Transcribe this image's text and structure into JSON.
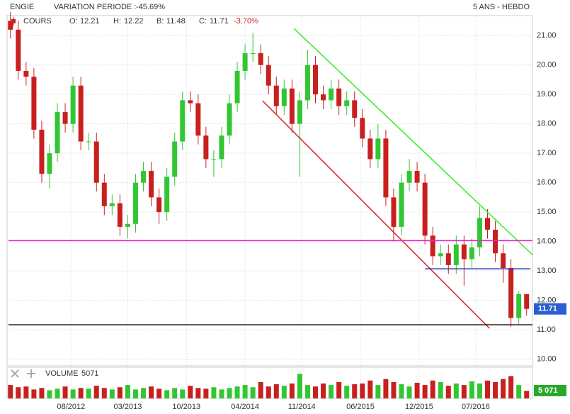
{
  "chart_data": {
    "type": "candlestick",
    "header": {
      "name": "ENGIE",
      "variation_label": "VARIATION PERIODE :",
      "variation": "-45.69%",
      "period": "5 ANS - HEBDO"
    },
    "legend": {
      "series_name": "COURS",
      "open_label": "O:",
      "high_label": "H:",
      "low_label": "B:",
      "close_label": "C:",
      "change": "-3.70%"
    },
    "up_color": "#33c633",
    "down_color": "#c8201e",
    "xlim": [
      0,
      268
    ],
    "xticks": [
      {
        "value": 32,
        "label": "08/2012"
      },
      {
        "value": 61,
        "label": "03/2013"
      },
      {
        "value": 91,
        "label": "10/2013"
      },
      {
        "value": 121,
        "label": "04/2014"
      },
      {
        "value": 150,
        "label": "11/2014"
      },
      {
        "value": 180,
        "label": "06/2015"
      },
      {
        "value": 210,
        "label": "12/2015"
      },
      {
        "value": 239,
        "label": "07/2016"
      }
    ],
    "ylim": [
      9.8,
      21.63
    ],
    "yticks": [
      {
        "value": 10,
        "label": "10.00"
      },
      {
        "value": 11,
        "label": "11.00"
      },
      {
        "value": 12,
        "label": "12.00"
      },
      {
        "value": 13,
        "label": "13.00"
      },
      {
        "value": 14,
        "label": "14.00"
      },
      {
        "value": 15,
        "label": "15.00"
      },
      {
        "value": 16,
        "label": "16.00"
      },
      {
        "value": 17,
        "label": "17.00"
      },
      {
        "value": 18,
        "label": "18.00"
      },
      {
        "value": 19,
        "label": "19.00"
      },
      {
        "value": 20,
        "label": "20.00"
      },
      {
        "value": 21,
        "label": "21.00"
      }
    ],
    "grid": true,
    "x": [
      1,
      5,
      9,
      13,
      17,
      21,
      25,
      29,
      33,
      37,
      41,
      45,
      49,
      53,
      57,
      61,
      65,
      69,
      73,
      77,
      81,
      85,
      89,
      93,
      97,
      101,
      105,
      109,
      113,
      117,
      121,
      125,
      129,
      133,
      137,
      141,
      145,
      149,
      153,
      157,
      161,
      165,
      169,
      173,
      177,
      181,
      185,
      189,
      193,
      197,
      201,
      205,
      209,
      213,
      217,
      221,
      225,
      229,
      233,
      237,
      241,
      245,
      249,
      253,
      257,
      261,
      265
    ],
    "open": [
      21.5,
      21.2,
      19.8,
      19.6,
      17.8,
      16.3,
      17.0,
      18.4,
      18.0,
      19.3,
      17.4,
      17.4,
      16.0,
      15.2,
      15.3,
      14.5,
      14.6,
      16.0,
      16.4,
      15.5,
      15.0,
      16.2,
      17.4,
      18.8,
      18.7,
      17.6,
      16.8,
      16.8,
      17.6,
      18.7,
      19.8,
      20.4,
      20.4,
      20.0,
      19.3,
      18.6,
      19.2,
      18.0,
      18.8,
      20.0,
      19.0,
      18.8,
      19.2,
      18.6,
      18.8,
      18.2,
      17.5,
      16.8,
      17.5,
      15.5,
      14.5,
      16.0,
      16.4,
      16.0,
      14.2,
      13.5,
      13.6,
      13.2,
      13.9,
      13.4,
      13.8,
      14.8,
      14.4,
      13.6,
      13.1,
      11.4,
      12.21
    ],
    "high": [
      21.8,
      21.5,
      20.1,
      19.9,
      18.1,
      17.3,
      18.7,
      18.7,
      19.6,
      19.6,
      17.7,
      17.7,
      16.3,
      15.6,
      15.6,
      14.9,
      16.3,
      16.7,
      16.7,
      15.8,
      16.5,
      17.7,
      19.1,
      19.1,
      19.0,
      17.9,
      17.1,
      17.9,
      19.0,
      20.1,
      20.7,
      21.1,
      20.7,
      20.3,
      19.6,
      19.5,
      19.5,
      19.1,
      20.5,
      20.3,
      19.3,
      19.5,
      19.5,
      19.1,
      19.1,
      18.5,
      17.8,
      18.0,
      17.8,
      15.8,
      16.3,
      16.8,
      16.7,
      16.3,
      14.5,
      13.9,
      13.9,
      14.2,
      14.2,
      14.1,
      15.2,
      15.1,
      14.7,
      13.9,
      13.4,
      12.3,
      12.22
    ],
    "low": [
      20.9,
      19.5,
      19.3,
      17.5,
      16.0,
      15.8,
      16.7,
      17.7,
      17.7,
      17.1,
      17.1,
      15.7,
      14.9,
      14.9,
      14.2,
      14.1,
      14.3,
      15.7,
      15.2,
      14.6,
      14.7,
      15.9,
      17.1,
      18.4,
      17.3,
      16.5,
      16.2,
      16.5,
      17.3,
      18.4,
      19.5,
      20.1,
      19.7,
      19.0,
      18.3,
      18.3,
      17.7,
      16.2,
      18.5,
      18.7,
      18.5,
      18.5,
      18.3,
      18.3,
      17.9,
      17.2,
      16.5,
      16.5,
      15.2,
      14.0,
      14.2,
      15.7,
      15.7,
      13.9,
      13.2,
      13.2,
      12.9,
      12.9,
      12.5,
      13.1,
      13.5,
      14.1,
      13.3,
      12.6,
      11.1,
      11.2,
      11.48
    ],
    "close": [
      21.2,
      19.8,
      19.6,
      17.8,
      16.3,
      17.0,
      18.4,
      18.0,
      19.3,
      17.4,
      17.4,
      16.0,
      15.2,
      15.3,
      14.5,
      14.6,
      16.0,
      16.4,
      15.5,
      15.0,
      16.2,
      17.4,
      18.8,
      18.7,
      17.6,
      16.8,
      16.8,
      17.6,
      18.7,
      19.8,
      20.4,
      20.4,
      20.0,
      19.3,
      18.6,
      19.2,
      18.0,
      18.8,
      20.0,
      19.0,
      18.8,
      19.2,
      18.6,
      18.8,
      18.2,
      17.5,
      16.8,
      17.5,
      15.5,
      14.5,
      16.0,
      16.4,
      16.0,
      14.2,
      13.5,
      13.6,
      13.2,
      13.9,
      13.4,
      13.8,
      14.8,
      14.4,
      13.6,
      13.1,
      11.4,
      12.21,
      11.71
    ],
    "lines": [
      {
        "x": [
          146,
          268
        ],
        "y": [
          21.24,
          13.55
        ],
        "color": "#33ee22"
      },
      {
        "x": [
          130,
          246
        ],
        "y": [
          18.78,
          11.05
        ],
        "color": "#e02020"
      },
      {
        "x": [
          0,
          268
        ],
        "y": [
          14.03,
          14.03
        ],
        "color": "#ee22cc"
      },
      {
        "x": [
          213,
          267
        ],
        "y": [
          13.07,
          13.07
        ],
        "color": "#2233bb"
      },
      {
        "x": [
          0,
          268
        ],
        "y": [
          11.17,
          11.17
        ],
        "color": "#111111"
      }
    ],
    "volume": {
      "label": "VOLUME",
      "ylim": [
        0,
        20000
      ],
      "value_label_last": "5 071",
      "values": [
        9000,
        7500,
        8000,
        6000,
        7000,
        5500,
        6500,
        8000,
        6000,
        7000,
        6500,
        8500,
        7000,
        6000,
        7500,
        9000,
        6000,
        7000,
        8000,
        6500,
        5500,
        7000,
        6000,
        8500,
        7000,
        6500,
        7500,
        6000,
        7000,
        8000,
        9000,
        7500,
        11000,
        8000,
        9500,
        8500,
        10000,
        16500,
        9000,
        8000,
        10000,
        9000,
        11000,
        8500,
        9500,
        10000,
        12000,
        9000,
        13000,
        11000,
        9500,
        8000,
        10500,
        9000,
        12000,
        11000,
        8500,
        10000,
        9000,
        11500,
        10000,
        12000,
        11000,
        13000,
        15000,
        9000,
        5071
      ]
    }
  }
}
